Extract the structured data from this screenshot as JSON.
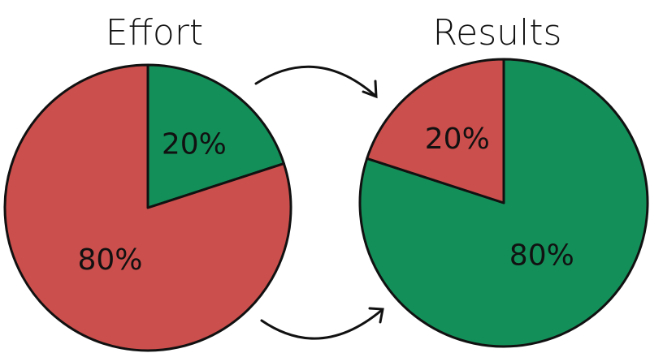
{
  "chart_data": [
    {
      "type": "pie",
      "title": "Effort",
      "slices": [
        {
          "label": "20%",
          "value": 20,
          "color": "#13905a"
        },
        {
          "label": "80%",
          "value": 80,
          "color": "#cb4f4c"
        }
      ]
    },
    {
      "type": "pie",
      "title": "Results",
      "slices": [
        {
          "label": "80%",
          "value": 80,
          "color": "#13905a"
        },
        {
          "label": "20%",
          "value": 20,
          "color": "#cb4f4c"
        }
      ]
    }
  ],
  "colors": {
    "outline": "#111111",
    "green": "#13905a",
    "red": "#cb4f4c"
  },
  "arrows": [
    "arrow-top",
    "arrow-bottom"
  ]
}
